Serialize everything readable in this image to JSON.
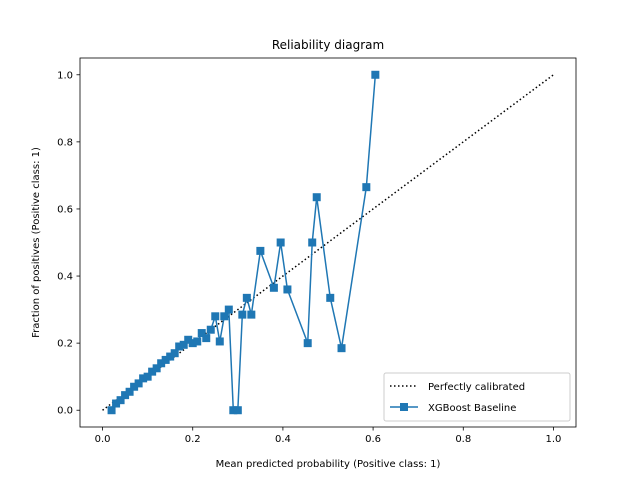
{
  "chart_data": {
    "type": "line",
    "title": "Reliability diagram",
    "xlabel": "Mean predicted probability (Positive class: 1)",
    "ylabel": "Fraction of positives (Positive class: 1)",
    "xlim": [
      -0.05,
      1.05
    ],
    "ylim": [
      -0.05,
      1.05
    ],
    "xticks": [
      "0.0",
      "0.2",
      "0.4",
      "0.6",
      "0.8",
      "1.0"
    ],
    "yticks": [
      "0.0",
      "0.2",
      "0.4",
      "0.6",
      "0.8",
      "1.0"
    ],
    "grid": false,
    "legend_position": "lower-right",
    "series": [
      {
        "name": "Perfectly calibrated",
        "style": "dotted",
        "color": "#000000",
        "x": [
          0.0,
          1.0
        ],
        "y": [
          0.0,
          1.0
        ]
      },
      {
        "name": "XGBoost Baseline",
        "style": "solid-square-markers",
        "color": "#1f77b4",
        "x": [
          0.02,
          0.03,
          0.04,
          0.05,
          0.06,
          0.07,
          0.08,
          0.09,
          0.1,
          0.11,
          0.12,
          0.13,
          0.14,
          0.15,
          0.16,
          0.17,
          0.18,
          0.19,
          0.2,
          0.21,
          0.22,
          0.23,
          0.24,
          0.25,
          0.26,
          0.27,
          0.28,
          0.29,
          0.3,
          0.31,
          0.32,
          0.33,
          0.35,
          0.38,
          0.395,
          0.41,
          0.455,
          0.465,
          0.475,
          0.505,
          0.53,
          0.585,
          0.605
        ],
        "y": [
          0.0,
          0.02,
          0.03,
          0.045,
          0.055,
          0.07,
          0.08,
          0.095,
          0.1,
          0.115,
          0.125,
          0.14,
          0.15,
          0.16,
          0.17,
          0.19,
          0.195,
          0.21,
          0.2,
          0.205,
          0.23,
          0.215,
          0.24,
          0.28,
          0.205,
          0.28,
          0.3,
          0.0,
          0.0,
          0.285,
          0.335,
          0.285,
          0.475,
          0.365,
          0.5,
          0.36,
          0.2,
          0.5,
          0.635,
          0.335,
          0.185,
          0.665,
          1.0
        ]
      }
    ]
  }
}
